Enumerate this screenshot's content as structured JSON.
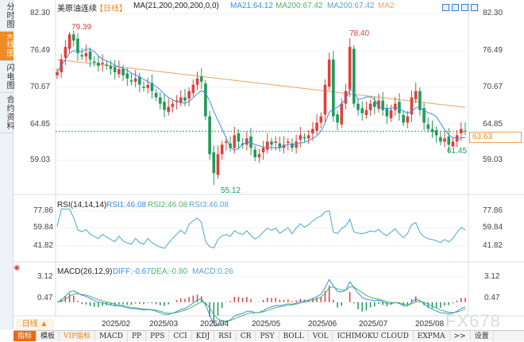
{
  "sidebar": {
    "tabs": [
      {
        "label": "分时图"
      },
      {
        "label": "K线图"
      },
      {
        "label": "闪电图"
      },
      {
        "label": "合约资料"
      }
    ]
  },
  "header": {
    "symbol": "美原油连续",
    "period_tag": "【日线】",
    "ma_label": "MA(21,200,200,200,0,0)",
    "ma21": "MA21:64.12",
    "ma200a": "MA200:67.42",
    "ma200b": "MA200:67.42",
    "ma2": "MA2"
  },
  "price_axis": [
    "82.30",
    "76.49",
    "70.67",
    "64.85",
    "59.03"
  ],
  "current_price": "63.63",
  "annotations": {
    "high1": "79.39",
    "high2": "78.40",
    "low1": "55.12",
    "low2": "61.45"
  },
  "rsi": {
    "label": "RSI(14,14,14)",
    "rsi1": "RSI1:46.08",
    "rsi2": "RSI2:46.08",
    "rsi3": "RSI3:46.08",
    "axis": [
      "77.86",
      "59.84",
      "41.82"
    ]
  },
  "macd": {
    "label": "MACD(26,12,9)",
    "diff": "DIFF:-0.67",
    "dea": "DEA:-0.80",
    "macd": "MACD:0.26",
    "axis": [
      "3.12",
      "0.47"
    ]
  },
  "dates": [
    "2025/02",
    "2025/03",
    "2025/04",
    "2025/05",
    "2025/06",
    "2025/07",
    "2025/08"
  ],
  "period_button": "日线 ▲",
  "toolbar": [
    "指标",
    "模板",
    "VIP指标",
    "MACD",
    "PP",
    "PPS",
    "CCI",
    "KDJ",
    "RSI",
    "CR",
    "PSY",
    "BOLL",
    "VOL",
    "ICHIMOKU CLOUD",
    "EXPMA",
    ">>",
    "设置"
  ],
  "watermark": "FX678",
  "colors": {
    "up": "#e0403a",
    "down": "#1f9a5a",
    "ma21": "#3a8ee6",
    "ma200": "#f0a060"
  },
  "chart_data": {
    "type": "candlestick",
    "closes": [
      73,
      75,
      77,
      79,
      78,
      76,
      75.5,
      76,
      75,
      74.5,
      74,
      74.5,
      74,
      73.5,
      73,
      73.5,
      72.5,
      72,
      71.5,
      72,
      71,
      70.5,
      71,
      70,
      69,
      68,
      67,
      67.5,
      68,
      68.5,
      69,
      68.5,
      70,
      71,
      72,
      71.5,
      66,
      60,
      57,
      60,
      61.5,
      62,
      61,
      63,
      62,
      61.5,
      62.5,
      61,
      59.5,
      60,
      61,
      62,
      61.5,
      62,
      61,
      61.5,
      62,
      61,
      62,
      63,
      62.5,
      63,
      64,
      65,
      66,
      71,
      75,
      66,
      65,
      68,
      70,
      77,
      68,
      67,
      66.5,
      67,
      68,
      67.5,
      68.5,
      67,
      66,
      67,
      68,
      66.5,
      65,
      66,
      69,
      70,
      67,
      65,
      64,
      63.5,
      63,
      62,
      62.5,
      61.5,
      62,
      63,
      64,
      63.6
    ],
    "ma200_range": [
      75,
      67.42
    ],
    "ylim": [
      55,
      82.3
    ]
  }
}
